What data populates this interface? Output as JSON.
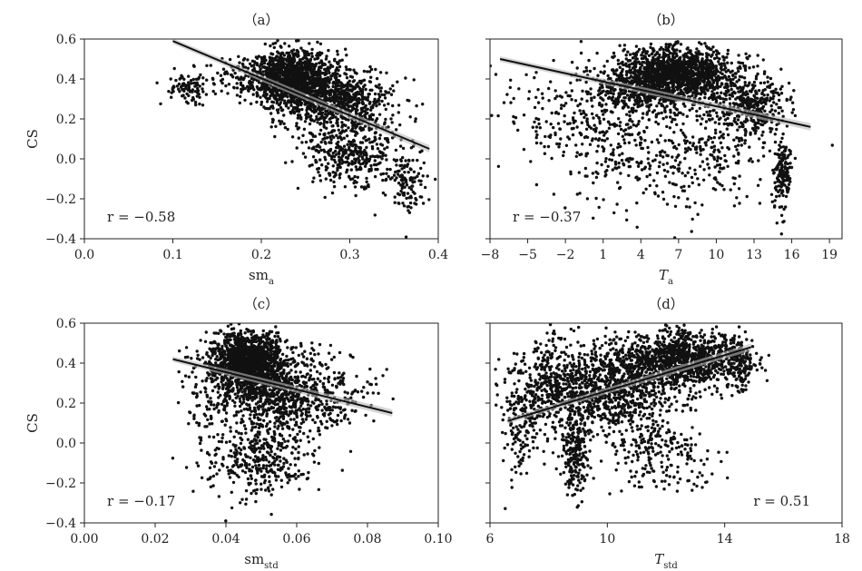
{
  "chart_data": [
    {
      "type": "scatter",
      "panel": "(a)",
      "title": "（a）",
      "xlabel": "sm",
      "xlabel_sub": "a",
      "ylabel": "CS",
      "xlim": [
        0.0,
        0.4
      ],
      "ylim": [
        -0.4,
        0.6
      ],
      "xticks": [
        0.0,
        0.1,
        0.2,
        0.3,
        0.4
      ],
      "xtick_labels": [
        "0.0",
        "0.1",
        "0.2",
        "0.3",
        "0.4"
      ],
      "yticks": [
        -0.4,
        -0.2,
        0.0,
        0.2,
        0.4,
        0.6
      ],
      "ytick_labels": [
        "−0.4",
        "−0.2",
        "0.0",
        "0.2",
        "0.4",
        "0.6"
      ],
      "r_label": "r = −0.58",
      "r_position": "bottom-left",
      "fit": {
        "x": [
          0.1,
          0.39
        ],
        "y": [
          0.59,
          0.05
        ]
      },
      "clusters": [
        {
          "cx": 0.235,
          "cy": 0.4,
          "sx": 0.022,
          "sy": 0.07,
          "n": 1400,
          "seed": 11
        },
        {
          "cx": 0.29,
          "cy": 0.28,
          "sx": 0.03,
          "sy": 0.09,
          "n": 700,
          "seed": 12
        },
        {
          "cx": 0.3,
          "cy": 0.02,
          "sx": 0.025,
          "sy": 0.08,
          "n": 350,
          "seed": 13
        },
        {
          "cx": 0.365,
          "cy": -0.1,
          "sx": 0.012,
          "sy": 0.09,
          "n": 130,
          "seed": 14
        },
        {
          "cx": 0.12,
          "cy": 0.36,
          "sx": 0.012,
          "sy": 0.04,
          "n": 90,
          "seed": 15
        },
        {
          "cx": 0.17,
          "cy": 0.42,
          "sx": 0.015,
          "sy": 0.05,
          "n": 70,
          "seed": 16
        }
      ]
    },
    {
      "type": "scatter",
      "panel": "(b)",
      "title": "（b）",
      "xlabel": "T",
      "xlabel_sub": "a",
      "ylabel": "",
      "xlim": [
        -8,
        20
      ],
      "ylim": [
        -0.4,
        0.6
      ],
      "xticks": [
        -8,
        -5,
        -2,
        1,
        4,
        7,
        10,
        13,
        16,
        19
      ],
      "xtick_labels": [
        "−8",
        "−5",
        "−2",
        "1",
        "4",
        "7",
        "10",
        "13",
        "16",
        "19"
      ],
      "yticks": [
        -0.4,
        -0.2,
        0.0,
        0.2,
        0.4,
        0.6
      ],
      "ytick_labels": [],
      "r_label": "r = −0.37",
      "r_position": "bottom-left",
      "fit": {
        "x": [
          -7.2,
          17.5
        ],
        "y": [
          0.5,
          0.16
        ]
      },
      "clusters": [
        {
          "cx": 7.2,
          "cy": 0.42,
          "sx": 2.2,
          "sy": 0.07,
          "n": 1300,
          "seed": 21
        },
        {
          "cx": 4.0,
          "cy": 0.36,
          "sx": 2.0,
          "sy": 0.08,
          "n": 500,
          "seed": 22
        },
        {
          "cx": 12.5,
          "cy": 0.26,
          "sx": 1.5,
          "sy": 0.08,
          "n": 400,
          "seed": 23
        },
        {
          "cx": 15.2,
          "cy": -0.08,
          "sx": 0.35,
          "sy": 0.1,
          "n": 160,
          "seed": 24
        },
        {
          "cx": 1.5,
          "cy": 0.12,
          "sx": 2.6,
          "sy": 0.15,
          "n": 260,
          "seed": 25
        },
        {
          "cx": 8.0,
          "cy": 0.0,
          "sx": 3.0,
          "sy": 0.12,
          "n": 260,
          "seed": 26
        },
        {
          "cx": -4.0,
          "cy": 0.25,
          "sx": 2.5,
          "sy": 0.12,
          "n": 80,
          "seed": 27
        }
      ]
    },
    {
      "type": "scatter",
      "panel": "(c)",
      "title": "（c）",
      "xlabel": "sm",
      "xlabel_sub": "std",
      "ylabel": "CS",
      "xlim": [
        0.0,
        0.1
      ],
      "ylim": [
        -0.4,
        0.6
      ],
      "xticks": [
        0.0,
        0.02,
        0.04,
        0.06,
        0.08,
        0.1
      ],
      "xtick_labels": [
        "0.00",
        "0.02",
        "0.04",
        "0.06",
        "0.08",
        "0.10"
      ],
      "yticks": [
        -0.4,
        -0.2,
        0.0,
        0.2,
        0.4,
        0.6
      ],
      "ytick_labels": [
        "−0.4",
        "−0.2",
        "0.0",
        "0.2",
        "0.4",
        "0.6"
      ],
      "r_label": "r = −0.17",
      "r_position": "bottom-left",
      "fit": {
        "x": [
          0.025,
          0.087
        ],
        "y": [
          0.42,
          0.15
        ]
      },
      "clusters": [
        {
          "cx": 0.046,
          "cy": 0.41,
          "sx": 0.005,
          "sy": 0.07,
          "n": 1400,
          "seed": 31
        },
        {
          "cx": 0.053,
          "cy": 0.25,
          "sx": 0.008,
          "sy": 0.1,
          "n": 700,
          "seed": 32
        },
        {
          "cx": 0.05,
          "cy": -0.08,
          "sx": 0.007,
          "sy": 0.09,
          "n": 350,
          "seed": 33
        },
        {
          "cx": 0.068,
          "cy": 0.22,
          "sx": 0.008,
          "sy": 0.1,
          "n": 200,
          "seed": 34
        },
        {
          "cx": 0.035,
          "cy": 0.2,
          "sx": 0.004,
          "sy": 0.2,
          "n": 100,
          "seed": 35
        }
      ]
    },
    {
      "type": "scatter",
      "panel": "(d)",
      "title": "（d）",
      "xlabel": "T",
      "xlabel_sub": "std",
      "ylabel": "",
      "xlim": [
        6,
        18
      ],
      "ylim": [
        -0.4,
        0.6
      ],
      "xticks": [
        6,
        10,
        14,
        18
      ],
      "xtick_labels": [
        "6",
        "10",
        "14",
        "18"
      ],
      "yticks": [
        -0.4,
        -0.2,
        0.0,
        0.2,
        0.4,
        0.6
      ],
      "ytick_labels": [],
      "r_label": "r = 0.51",
      "r_position": "bottom-right",
      "fit": {
        "x": [
          6.6,
          14.9
        ],
        "y": [
          0.11,
          0.48
        ]
      },
      "clusters": [
        {
          "cx": 12.6,
          "cy": 0.42,
          "sx": 1.0,
          "sy": 0.07,
          "n": 1000,
          "seed": 41
        },
        {
          "cx": 10.3,
          "cy": 0.28,
          "sx": 1.1,
          "sy": 0.12,
          "n": 900,
          "seed": 42
        },
        {
          "cx": 8.0,
          "cy": 0.28,
          "sx": 0.8,
          "sy": 0.12,
          "n": 450,
          "seed": 43
        },
        {
          "cx": 8.9,
          "cy": -0.05,
          "sx": 0.25,
          "sy": 0.12,
          "n": 220,
          "seed": 44
        },
        {
          "cx": 11.8,
          "cy": -0.05,
          "sx": 0.9,
          "sy": 0.09,
          "n": 200,
          "seed": 45
        },
        {
          "cx": 14.5,
          "cy": 0.4,
          "sx": 0.3,
          "sy": 0.07,
          "n": 150,
          "seed": 46
        },
        {
          "cx": 7.0,
          "cy": 0.05,
          "sx": 0.3,
          "sy": 0.12,
          "n": 100,
          "seed": 47
        }
      ]
    }
  ]
}
